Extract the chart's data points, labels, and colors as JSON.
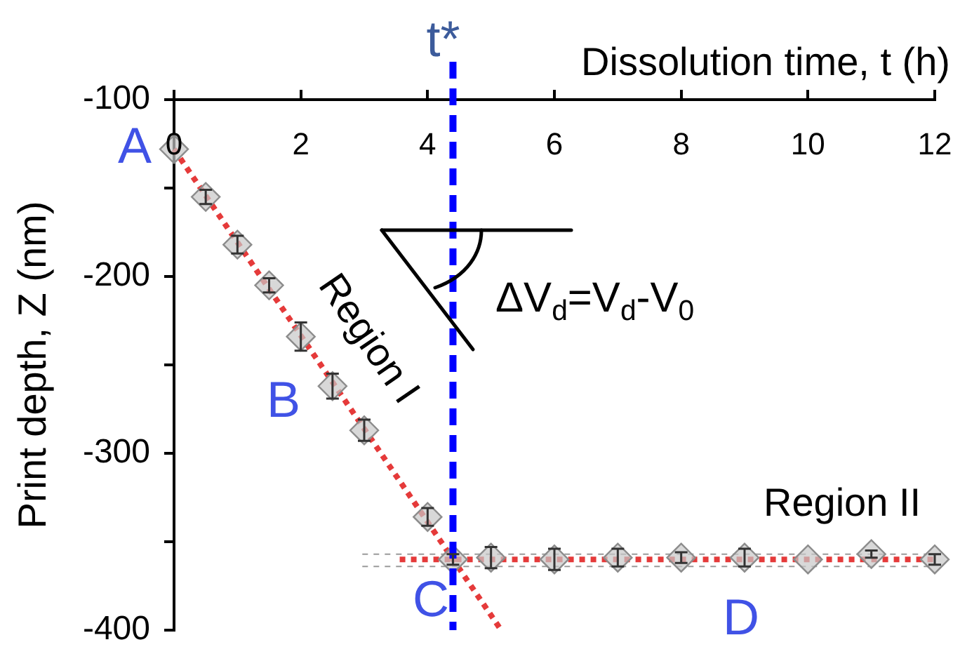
{
  "chart_data": {
    "type": "scatter",
    "xlabel": "Dissolution time, t (h)",
    "ylabel": "Print depth, Z (nm)",
    "xlim": [
      0,
      12
    ],
    "xticks": [
      0,
      2,
      4,
      6,
      8,
      10,
      12
    ],
    "ylim": [
      -400,
      -100
    ],
    "yticks": [
      -400,
      {
        "value": -350,
        "label": null
      },
      -300,
      {
        "value": -250,
        "label": null
      },
      -200,
      {
        "value": -150,
        "label": null
      },
      -100
    ],
    "series": [
      {
        "type": "scatter",
        "color": "#c8c8c8",
        "marker": "diamond",
        "x": [
          0,
          0.5,
          1,
          1.5,
          2,
          2.5,
          3,
          4,
          4.4,
          5,
          6,
          7,
          8,
          9,
          10,
          11,
          12
        ],
        "values": [
          -128,
          -155,
          -182,
          -205,
          -234,
          -262,
          -287,
          -336,
          -360,
          -359,
          -360,
          -359,
          -359,
          -359,
          -360,
          -357,
          -360
        ],
        "errors": [
          null,
          4,
          5,
          4,
          8,
          7,
          6,
          5,
          3,
          6,
          6,
          5,
          3,
          5,
          null,
          2,
          3
        ]
      },
      {
        "type": "line",
        "color": "#e53a3a",
        "line_style": "dotted",
        "x": [
          0,
          5.16
        ],
        "values": [
          -128,
          -400
        ]
      },
      {
        "type": "line",
        "color": "#e53a3a",
        "line_style": "dotted",
        "x": [
          3.56,
          12
        ],
        "values": [
          -360,
          -360
        ]
      },
      {
        "type": "line",
        "color": "#9a9a9a",
        "line_style": "dotted",
        "x": [
          2.97,
          12
        ],
        "values": [
          -357,
          -357
        ]
      },
      {
        "type": "line",
        "color": "#9a9a9a",
        "line_style": "dotted",
        "x": [
          2.97,
          12
        ],
        "values": [
          -364,
          -364
        ]
      }
    ],
    "ref_lines": [
      {
        "axis": "x",
        "value": 4.4,
        "label": "t*",
        "color": "#0000ff",
        "line_style": "dashed"
      }
    ],
    "annotations": [
      {
        "text": "A",
        "x": 0,
        "y": -128
      },
      "B",
      "C",
      "D",
      "Region I",
      "Region II",
      "ΔV$_{d}$=V$_{d}$-V$_{0}$"
    ]
  }
}
